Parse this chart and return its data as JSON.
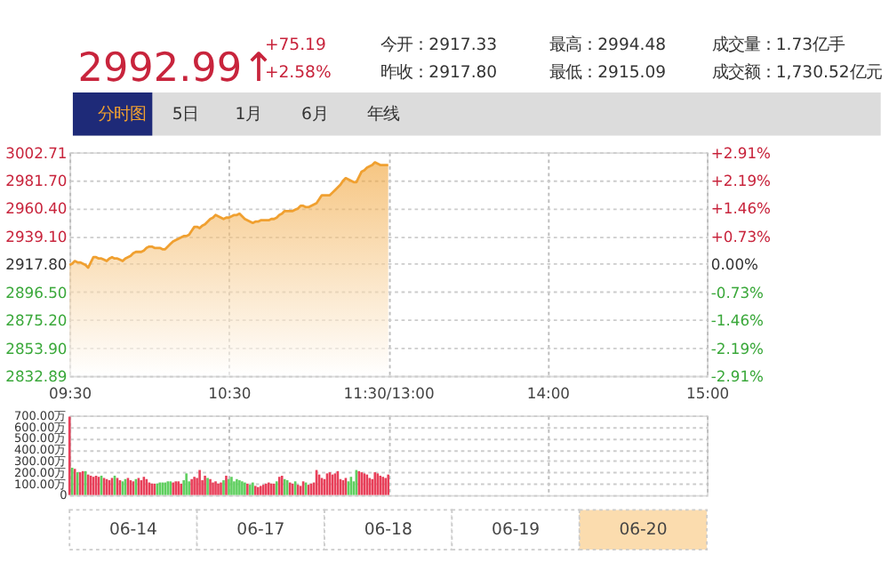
{
  "chart_data": [
    {
      "type": "other",
      "annotations": [
        "2992.99↑",
        "+75.19",
        "+2.58%",
        "今开：2917.33",
        "昨收：2917.80",
        "最高：2994.48",
        "最低：2915.09",
        "成交量：1.73亿手",
        "成交额：1,730.52亿元",
        "分时图",
        "5日",
        "1月",
        "6月",
        "年线"
      ]
    },
    {
      "type": "area",
      "color": "#f0a030",
      "grid": true,
      "categories": [
        "09:30",
        null,
        null,
        null,
        null,
        null,
        null,
        null,
        null,
        null,
        null,
        null,
        null,
        null,
        null,
        null,
        null,
        null,
        null,
        null,
        null,
        null,
        null,
        null,
        null,
        null,
        null,
        null,
        null,
        null,
        null,
        null,
        null,
        null,
        null,
        null,
        null,
        null,
        null,
        null,
        null,
        null,
        null,
        null,
        null,
        null,
        null,
        null,
        null,
        null,
        null,
        null,
        null,
        null,
        null,
        null,
        null,
        null,
        null,
        null,
        "10:30",
        null,
        null,
        null,
        null,
        null,
        null,
        null,
        null,
        null,
        null,
        null,
        null,
        null,
        null,
        null,
        null,
        null,
        null,
        null,
        null,
        null,
        null,
        null,
        null,
        null,
        null,
        null,
        null,
        null,
        null,
        null,
        null,
        null,
        null,
        null,
        null,
        null,
        null,
        null,
        null,
        null,
        null,
        null,
        null,
        null,
        null,
        null,
        null,
        null,
        null,
        null,
        null,
        null,
        null,
        null,
        null,
        null,
        null,
        null,
        "11:30/13:00",
        null,
        null,
        null,
        null,
        null,
        null,
        null,
        null,
        null,
        null,
        null,
        null,
        null,
        null,
        null,
        null,
        null,
        null,
        null,
        null,
        null,
        null,
        null,
        null,
        null,
        null,
        null,
        null,
        null,
        null,
        null,
        null,
        null,
        null,
        null,
        null,
        null,
        null,
        null,
        null,
        null,
        null,
        null,
        null,
        null,
        null,
        null,
        null,
        null,
        null,
        null,
        null,
        null,
        null,
        null,
        null,
        null,
        null,
        null,
        "14:00",
        null,
        null,
        null,
        null,
        null,
        null,
        null,
        null,
        null,
        null,
        null,
        null,
        null,
        null,
        null,
        null,
        null,
        null,
        null,
        null,
        null,
        null,
        null,
        null,
        null,
        null,
        null,
        null,
        null,
        null,
        null,
        null,
        null,
        null,
        null,
        null,
        null,
        null,
        null,
        null,
        null,
        null,
        null,
        null,
        null,
        null,
        null,
        null,
        null,
        null,
        null,
        null,
        null,
        null,
        null,
        null,
        null,
        null,
        null,
        "15:00"
      ],
      "values": [
        2917,
        2918,
        2920,
        2919,
        2919,
        2918,
        2917,
        2915,
        2919,
        2923,
        2923,
        2922,
        2922,
        2921,
        2920,
        2922,
        2923,
        2922,
        2922,
        2921,
        2920,
        2922,
        2923,
        2924,
        2926,
        2927,
        2927,
        2927,
        2928,
        2930,
        2931,
        2931,
        2930,
        2930,
        2930,
        2929,
        2929,
        2931,
        2933,
        2935,
        2936,
        2937,
        2938,
        2939,
        2939,
        2940,
        2943,
        2946,
        2946,
        2945,
        2947,
        2948,
        2950,
        2952,
        2953,
        2955,
        2954,
        2953,
        2952,
        2953,
        2953,
        2954,
        2955,
        2955,
        2956,
        2954,
        2952,
        2951,
        2950,
        2949,
        2950,
        2950,
        2951,
        2951,
        2951,
        2951,
        2952,
        2952,
        2953,
        2955,
        2956,
        2958,
        2958,
        2958,
        2958,
        2959,
        2960,
        2962,
        2962,
        2961,
        2961,
        2962,
        2963,
        2964,
        2967,
        2970,
        2970,
        2970,
        2970,
        2972,
        2974,
        2976,
        2978,
        2981,
        2983,
        2982,
        2981,
        2980,
        2980,
        2984,
        2988,
        2989,
        2991,
        2992,
        2993,
        2995,
        2994,
        2993,
        2993,
        2993,
        2993,
        null,
        null,
        null,
        null,
        null,
        null,
        null,
        null,
        null,
        null,
        null,
        null,
        null,
        null,
        null,
        null,
        null,
        null,
        null,
        null,
        null,
        null,
        null,
        null,
        null,
        null,
        null,
        null,
        null,
        null,
        null,
        null,
        null,
        null,
        null,
        null,
        null,
        null,
        null,
        null,
        null,
        null,
        null,
        null,
        null,
        null,
        null,
        null,
        null,
        null,
        null,
        null,
        null,
        null,
        null,
        null,
        null,
        null,
        null,
        null,
        null,
        null,
        null,
        null,
        null,
        null,
        null,
        null,
        null,
        null,
        null,
        null,
        null,
        null,
        null,
        null,
        null,
        null,
        null,
        null,
        null,
        null,
        null,
        null,
        null,
        null,
        null,
        null,
        null,
        null,
        null,
        null,
        null,
        null,
        null,
        null,
        null,
        null,
        null,
        null,
        null,
        null,
        null,
        null,
        null,
        null,
        null,
        null,
        null,
        null,
        null,
        null,
        null,
        null,
        null,
        null,
        null,
        null,
        null,
        null
      ],
      "ylim": [
        2832.89,
        3002.71
      ],
      "yticks": [
        {
          "value": 2832.89,
          "label": "2832.89"
        },
        {
          "value": 2853.9,
          "label": "2853.90"
        },
        {
          "value": 2875.2,
          "label": "2875.20"
        },
        {
          "value": 2896.5,
          "label": "2896.50"
        },
        {
          "value": 2917.8,
          "label": "2917.80"
        },
        {
          "value": 2939.1,
          "label": "2939.10"
        },
        {
          "value": 2960.4,
          "label": "2960.40"
        },
        {
          "value": 2981.7,
          "label": "2981.70"
        },
        {
          "value": 3002.71,
          "label": "3002.71"
        }
      ],
      "y2lim": [
        -2.91,
        2.91
      ],
      "y2ticks": [
        {
          "value": -2.91,
          "label": "-2.91%"
        },
        {
          "value": -2.19,
          "label": "-2.19%"
        },
        {
          "value": -1.46,
          "label": "-1.46%"
        },
        {
          "value": -0.73,
          "label": "-0.73%"
        },
        {
          "value": 0,
          "label": "0.00%"
        },
        {
          "value": 0.73,
          "label": "+0.73%"
        },
        {
          "value": 1.46,
          "label": "+1.46%"
        },
        {
          "value": 2.19,
          "label": "+2.19%"
        },
        {
          "value": 2.91,
          "label": "+2.91%"
        }
      ]
    },
    {
      "type": "bar",
      "grid": true,
      "tick_labels": "y",
      "categories": [
        null,
        null,
        null,
        null,
        null,
        null,
        null,
        null,
        null,
        null,
        null,
        null,
        null,
        null,
        null,
        null,
        null,
        null,
        null,
        null,
        null,
        null,
        null,
        null,
        null,
        null,
        null,
        null,
        null,
        null,
        null,
        null,
        null,
        null,
        null,
        null,
        null,
        null,
        null,
        null,
        null,
        null,
        null,
        null,
        null,
        null,
        null,
        null,
        null,
        null,
        null,
        null,
        null,
        null,
        null,
        null,
        null,
        null,
        null,
        null,
        null,
        null,
        null,
        null,
        null,
        null,
        null,
        null,
        null,
        null,
        null,
        null,
        null,
        null,
        null,
        null,
        null,
        null,
        null,
        null,
        null,
        null,
        null,
        null,
        null,
        null,
        null,
        null,
        null,
        null,
        null,
        null,
        null,
        null,
        null,
        null,
        null,
        null,
        null,
        null,
        null,
        null,
        null,
        null,
        null,
        null,
        null,
        null,
        null,
        null,
        null,
        null,
        null,
        null,
        null,
        null,
        null,
        null,
        null,
        null,
        null,
        null,
        null,
        null,
        null,
        null,
        null,
        null,
        null,
        null,
        null,
        null,
        null,
        null,
        null,
        null,
        null,
        null,
        null,
        null,
        null,
        null,
        null,
        null,
        null,
        null,
        null,
        null,
        null,
        null,
        null,
        null,
        null,
        null,
        null,
        null,
        null,
        null,
        null,
        null,
        null,
        null,
        null,
        null,
        null,
        null,
        null,
        null,
        null,
        null,
        null,
        null,
        null,
        null,
        null,
        null,
        null,
        null,
        null,
        null,
        null,
        null,
        null,
        null,
        null,
        null,
        null,
        null,
        null,
        null,
        null,
        null,
        null,
        null,
        null,
        null,
        null,
        null,
        null,
        null,
        null,
        null,
        null,
        null,
        null,
        null,
        null,
        null,
        null,
        null,
        null,
        null,
        null,
        null,
        null,
        null,
        null,
        null,
        null,
        null,
        null,
        null,
        null,
        null,
        null,
        null,
        null,
        null,
        null,
        null,
        null,
        null,
        null,
        null,
        null,
        null,
        null,
        null,
        null,
        null,
        null
      ],
      "values": [
        690,
        240,
        230,
        200,
        200,
        210,
        210,
        180,
        170,
        160,
        170,
        160,
        170,
        150,
        140,
        130,
        150,
        170,
        150,
        130,
        120,
        140,
        150,
        130,
        120,
        140,
        150,
        130,
        160,
        140,
        110,
        100,
        100,
        100,
        110,
        110,
        110,
        120,
        120,
        110,
        120,
        120,
        100,
        130,
        190,
        120,
        140,
        160,
        150,
        220,
        130,
        170,
        150,
        140,
        110,
        120,
        100,
        110,
        130,
        170,
        140,
        160,
        120,
        140,
        130,
        120,
        110,
        100,
        90,
        110,
        80,
        70,
        80,
        90,
        100,
        110,
        100,
        100,
        120,
        160,
        170,
        140,
        130,
        110,
        100,
        120,
        90,
        80,
        120,
        110,
        90,
        100,
        110,
        220,
        180,
        150,
        140,
        190,
        200,
        180,
        190,
        210,
        140,
        130,
        150,
        120,
        160,
        120,
        220,
        210,
        200,
        190,
        180,
        150,
        140,
        200,
        190,
        170,
        160,
        150,
        180,
        null,
        null,
        null,
        null,
        null,
        null,
        null,
        null,
        null,
        null,
        null,
        null,
        null,
        null,
        null,
        null,
        null,
        null,
        null,
        null,
        null,
        null,
        null,
        null,
        null,
        null,
        null,
        null,
        null,
        null,
        null,
        null,
        null,
        null,
        null,
        null,
        null,
        null,
        null,
        null,
        null,
        null,
        null,
        null,
        null,
        null,
        null,
        null,
        null,
        null,
        null,
        null,
        null,
        null,
        null,
        null,
        null,
        null,
        null,
        null,
        null,
        null,
        null,
        null,
        null,
        null,
        null,
        null,
        null,
        null,
        null,
        null,
        null,
        null,
        null,
        null,
        null,
        null,
        null,
        null,
        null,
        null,
        null,
        null,
        null,
        null,
        null,
        null,
        null,
        null,
        null,
        null,
        null,
        null,
        null,
        null,
        null,
        null,
        null,
        null,
        null,
        null,
        null,
        null,
        null,
        null,
        null,
        null,
        null,
        null,
        null,
        null,
        null,
        null,
        null,
        null,
        null,
        null,
        null,
        null
      ],
      "colors": [
        "#e8405a",
        "#5fcf5f",
        "#e8405a",
        "#5fcf5f",
        "#e8405a",
        "#e8405a",
        "#5fcf5f",
        "#e8405a",
        "#e8405a",
        "#e8405a",
        "#e8405a",
        "#e8405a",
        "#5fcf5f",
        "#e8405a",
        "#e8405a",
        "#e8405a",
        "#e8405a",
        "#5fcf5f",
        "#e8405a",
        "#e8405a",
        "#5fcf5f",
        "#5fcf5f",
        "#e8405a",
        "#e8405a",
        "#e8405a",
        "#5fcf5f",
        "#e8405a",
        "#e8405a",
        "#e8405a",
        "#e8405a",
        "#e8405a",
        "#e8405a",
        "#e8405a",
        "#5fcf5f",
        "#5fcf5f",
        "#5fcf5f",
        "#5fcf5f",
        "#5fcf5f",
        "#5fcf5f",
        "#e8405a",
        "#e8405a",
        "#e8405a",
        "#e8405a",
        "#5fcf5f",
        "#5fcf5f",
        "#5fcf5f",
        "#e8405a",
        "#e8405a",
        "#e8405a",
        "#e8405a",
        "#e8405a",
        "#e8405a",
        "#5fcf5f",
        "#e8405a",
        "#e8405a",
        "#e8405a",
        "#e8405a",
        "#e8405a",
        "#5fcf5f",
        "#e8405a",
        "#5fcf5f",
        "#5fcf5f",
        "#5fcf5f",
        "#5fcf5f",
        "#5fcf5f",
        "#5fcf5f",
        "#5fcf5f",
        "#e8405a",
        "#5fcf5f",
        "#5fcf5f",
        "#e8405a",
        "#e8405a",
        "#e8405a",
        "#e8405a",
        "#e8405a",
        "#e8405a",
        "#e8405a",
        "#e8405a",
        "#5fcf5f",
        "#e8405a",
        "#e8405a",
        "#5fcf5f",
        "#5fcf5f",
        "#e8405a",
        "#e8405a",
        "#5fcf5f",
        "#e8405a",
        "#e8405a",
        "#e8405a",
        "#5fcf5f",
        "#e8405a",
        "#e8405a",
        "#e8405a",
        "#e8405a",
        "#e8405a",
        "#e8405a",
        "#e8405a",
        "#e8405a",
        "#e8405a",
        "#e8405a",
        "#e8405a",
        "#e8405a",
        "#e8405a",
        "#e8405a",
        "#e8405a",
        "#5fcf5f",
        "#5fcf5f",
        "#5fcf5f",
        "#5fcf5f",
        "#e8405a",
        "#e8405a",
        "#e8405a",
        "#e8405a",
        "#e8405a",
        "#e8405a",
        "#e8405a",
        "#e8405a",
        "#e8405a",
        "#e8405a",
        "#e8405a",
        "#e8405a",
        null,
        null,
        null,
        null,
        null,
        null,
        null,
        null,
        null,
        null,
        null,
        null,
        null,
        null,
        null,
        null,
        null,
        null,
        null,
        null,
        null,
        null,
        null,
        null,
        null,
        null,
        null,
        null,
        null,
        null,
        null,
        null,
        null,
        null,
        null,
        null,
        null,
        null,
        null,
        null,
        null,
        null,
        null,
        null,
        null,
        null,
        null,
        null,
        null,
        null,
        null,
        null,
        null,
        null,
        null,
        null,
        null,
        null,
        null,
        null,
        null,
        null,
        null,
        null,
        null,
        null,
        null,
        null,
        null,
        null,
        null,
        null,
        null,
        null,
        null,
        null,
        null,
        null,
        null,
        null,
        null,
        null,
        null,
        null,
        null,
        null,
        null,
        null,
        null,
        null,
        null,
        null,
        null,
        null,
        null,
        null,
        null,
        null,
        null,
        null,
        null,
        null,
        null,
        null,
        null,
        null,
        null,
        null,
        null,
        null,
        null,
        null,
        null,
        null,
        null,
        null,
        null,
        null,
        null,
        null
      ],
      "ylim": [
        0,
        700
      ],
      "yticks": [
        {
          "value": 0,
          "label": "0"
        },
        {
          "value": 100,
          "label": "100.00万"
        },
        {
          "value": 200,
          "label": "200.00万"
        },
        {
          "value": 300,
          "label": "300.00万"
        },
        {
          "value": 400,
          "label": "400.00万"
        },
        {
          "value": 500,
          "label": "500.00万"
        },
        {
          "value": 600,
          "label": "600.00万"
        },
        {
          "value": 700,
          "label": "700.00万"
        }
      ]
    },
    {
      "type": "other",
      "annotations": [
        "06-14",
        "06-17",
        "06-18",
        "06-19",
        "06-20"
      ]
    }
  ]
}
